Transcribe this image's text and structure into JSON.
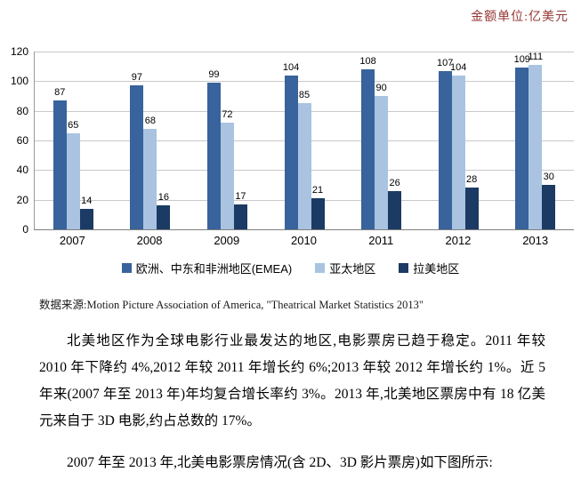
{
  "unit_label": "金额单位:亿美元",
  "chart_data": {
    "type": "bar",
    "title": "",
    "xlabel": "",
    "ylabel": "",
    "categories": [
      "2007",
      "2008",
      "2009",
      "2010",
      "2011",
      "2012",
      "2013"
    ],
    "series": [
      {
        "name": "欧洲、中东和非洲地区(EMEA)",
        "color": "#38639c",
        "values": [
          87,
          97,
          99,
          104,
          108,
          107,
          109
        ]
      },
      {
        "name": "亚太地区",
        "color": "#a9c3e1",
        "values": [
          65,
          68,
          72,
          85,
          90,
          104,
          111
        ]
      },
      {
        "name": "拉美地区",
        "color": "#1b3a64",
        "values": [
          14,
          16,
          17,
          21,
          26,
          28,
          30
        ]
      }
    ],
    "ylim": [
      0,
      120
    ],
    "ytick_step": 20,
    "grid": true,
    "legend_position": "bottom",
    "value_labels": true
  },
  "source_note": "数据来源:Motion Picture Association of America, \"Theatrical Market Statistics 2013\"",
  "paragraphs": [
    "北美地区作为全球电影行业最发达的地区,电影票房已趋于稳定。2011 年较 2010 年下降约 4%,2012 年较 2011 年增长约 6%;2013 年较 2012 年增长约 1%。近 5 年来(2007 年至 2013 年)年均复合增长率约 3%。2013 年,北美地区票房中有 18 亿美元来自于 3D 电影,约占总数的 17%。",
    "2007 年至 2013 年,北美电影票房情况(含 2D、3D 影片票房)如下图所示:"
  ]
}
